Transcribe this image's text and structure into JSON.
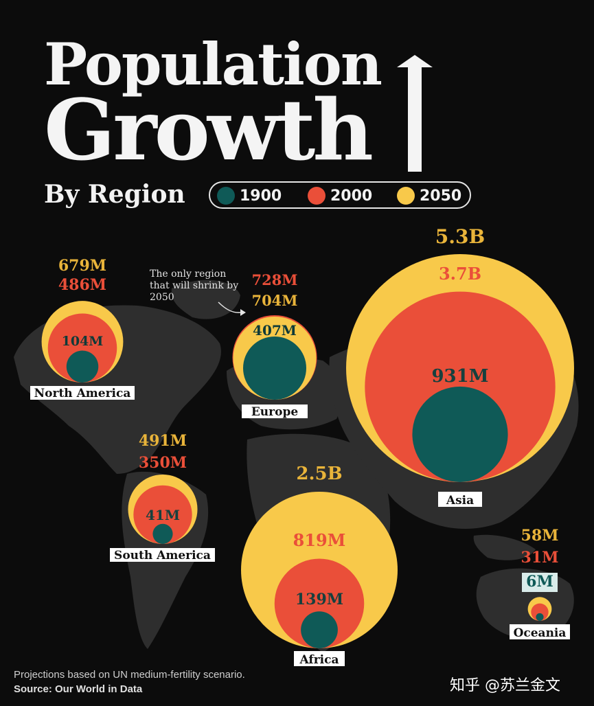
{
  "title": {
    "line1": "Population",
    "line2": "Growth",
    "subtitle": "By Region"
  },
  "legend": [
    {
      "label": "1900",
      "color": "#0f5a57"
    },
    {
      "label": "2000",
      "color": "#ea4f39"
    },
    {
      "label": "2050",
      "color": "#f8c94a"
    }
  ],
  "colors": {
    "c1900": "#0f5a57",
    "c2000": "#ea4f39",
    "c2050": "#f8c94a",
    "background": "#0c0c0c",
    "map": "#2e2e2e"
  },
  "annotation": "The only region that will shrink by 2050",
  "chart_data": {
    "type": "bubble",
    "series": [
      "1900",
      "2000",
      "2050"
    ],
    "regions": [
      {
        "name": "North America",
        "values_millions": [
          104,
          486,
          679
        ],
        "labels": [
          "104M",
          "486M",
          "679M"
        ]
      },
      {
        "name": "Europe",
        "values_millions": [
          407,
          728,
          704
        ],
        "labels": [
          "407M",
          "728M",
          "704M"
        ]
      },
      {
        "name": "Asia",
        "values_millions": [
          931,
          3700,
          5300
        ],
        "labels": [
          "931M",
          "3.7B",
          "5.3B"
        ]
      },
      {
        "name": "South America",
        "values_millions": [
          41,
          350,
          491
        ],
        "labels": [
          "41M",
          "350M",
          "491M"
        ]
      },
      {
        "name": "Africa",
        "values_millions": [
          139,
          819,
          2500
        ],
        "labels": [
          "139M",
          "819M",
          "2.5B"
        ]
      },
      {
        "name": "Oceania",
        "values_millions": [
          6,
          31,
          58
        ],
        "labels": [
          "6M",
          "31M",
          "58M"
        ]
      }
    ]
  },
  "footer": {
    "note": "Projections based on UN medium-fertility scenario.",
    "source": "Source: Our World in Data"
  },
  "watermark": "知乎 @苏兰金文"
}
